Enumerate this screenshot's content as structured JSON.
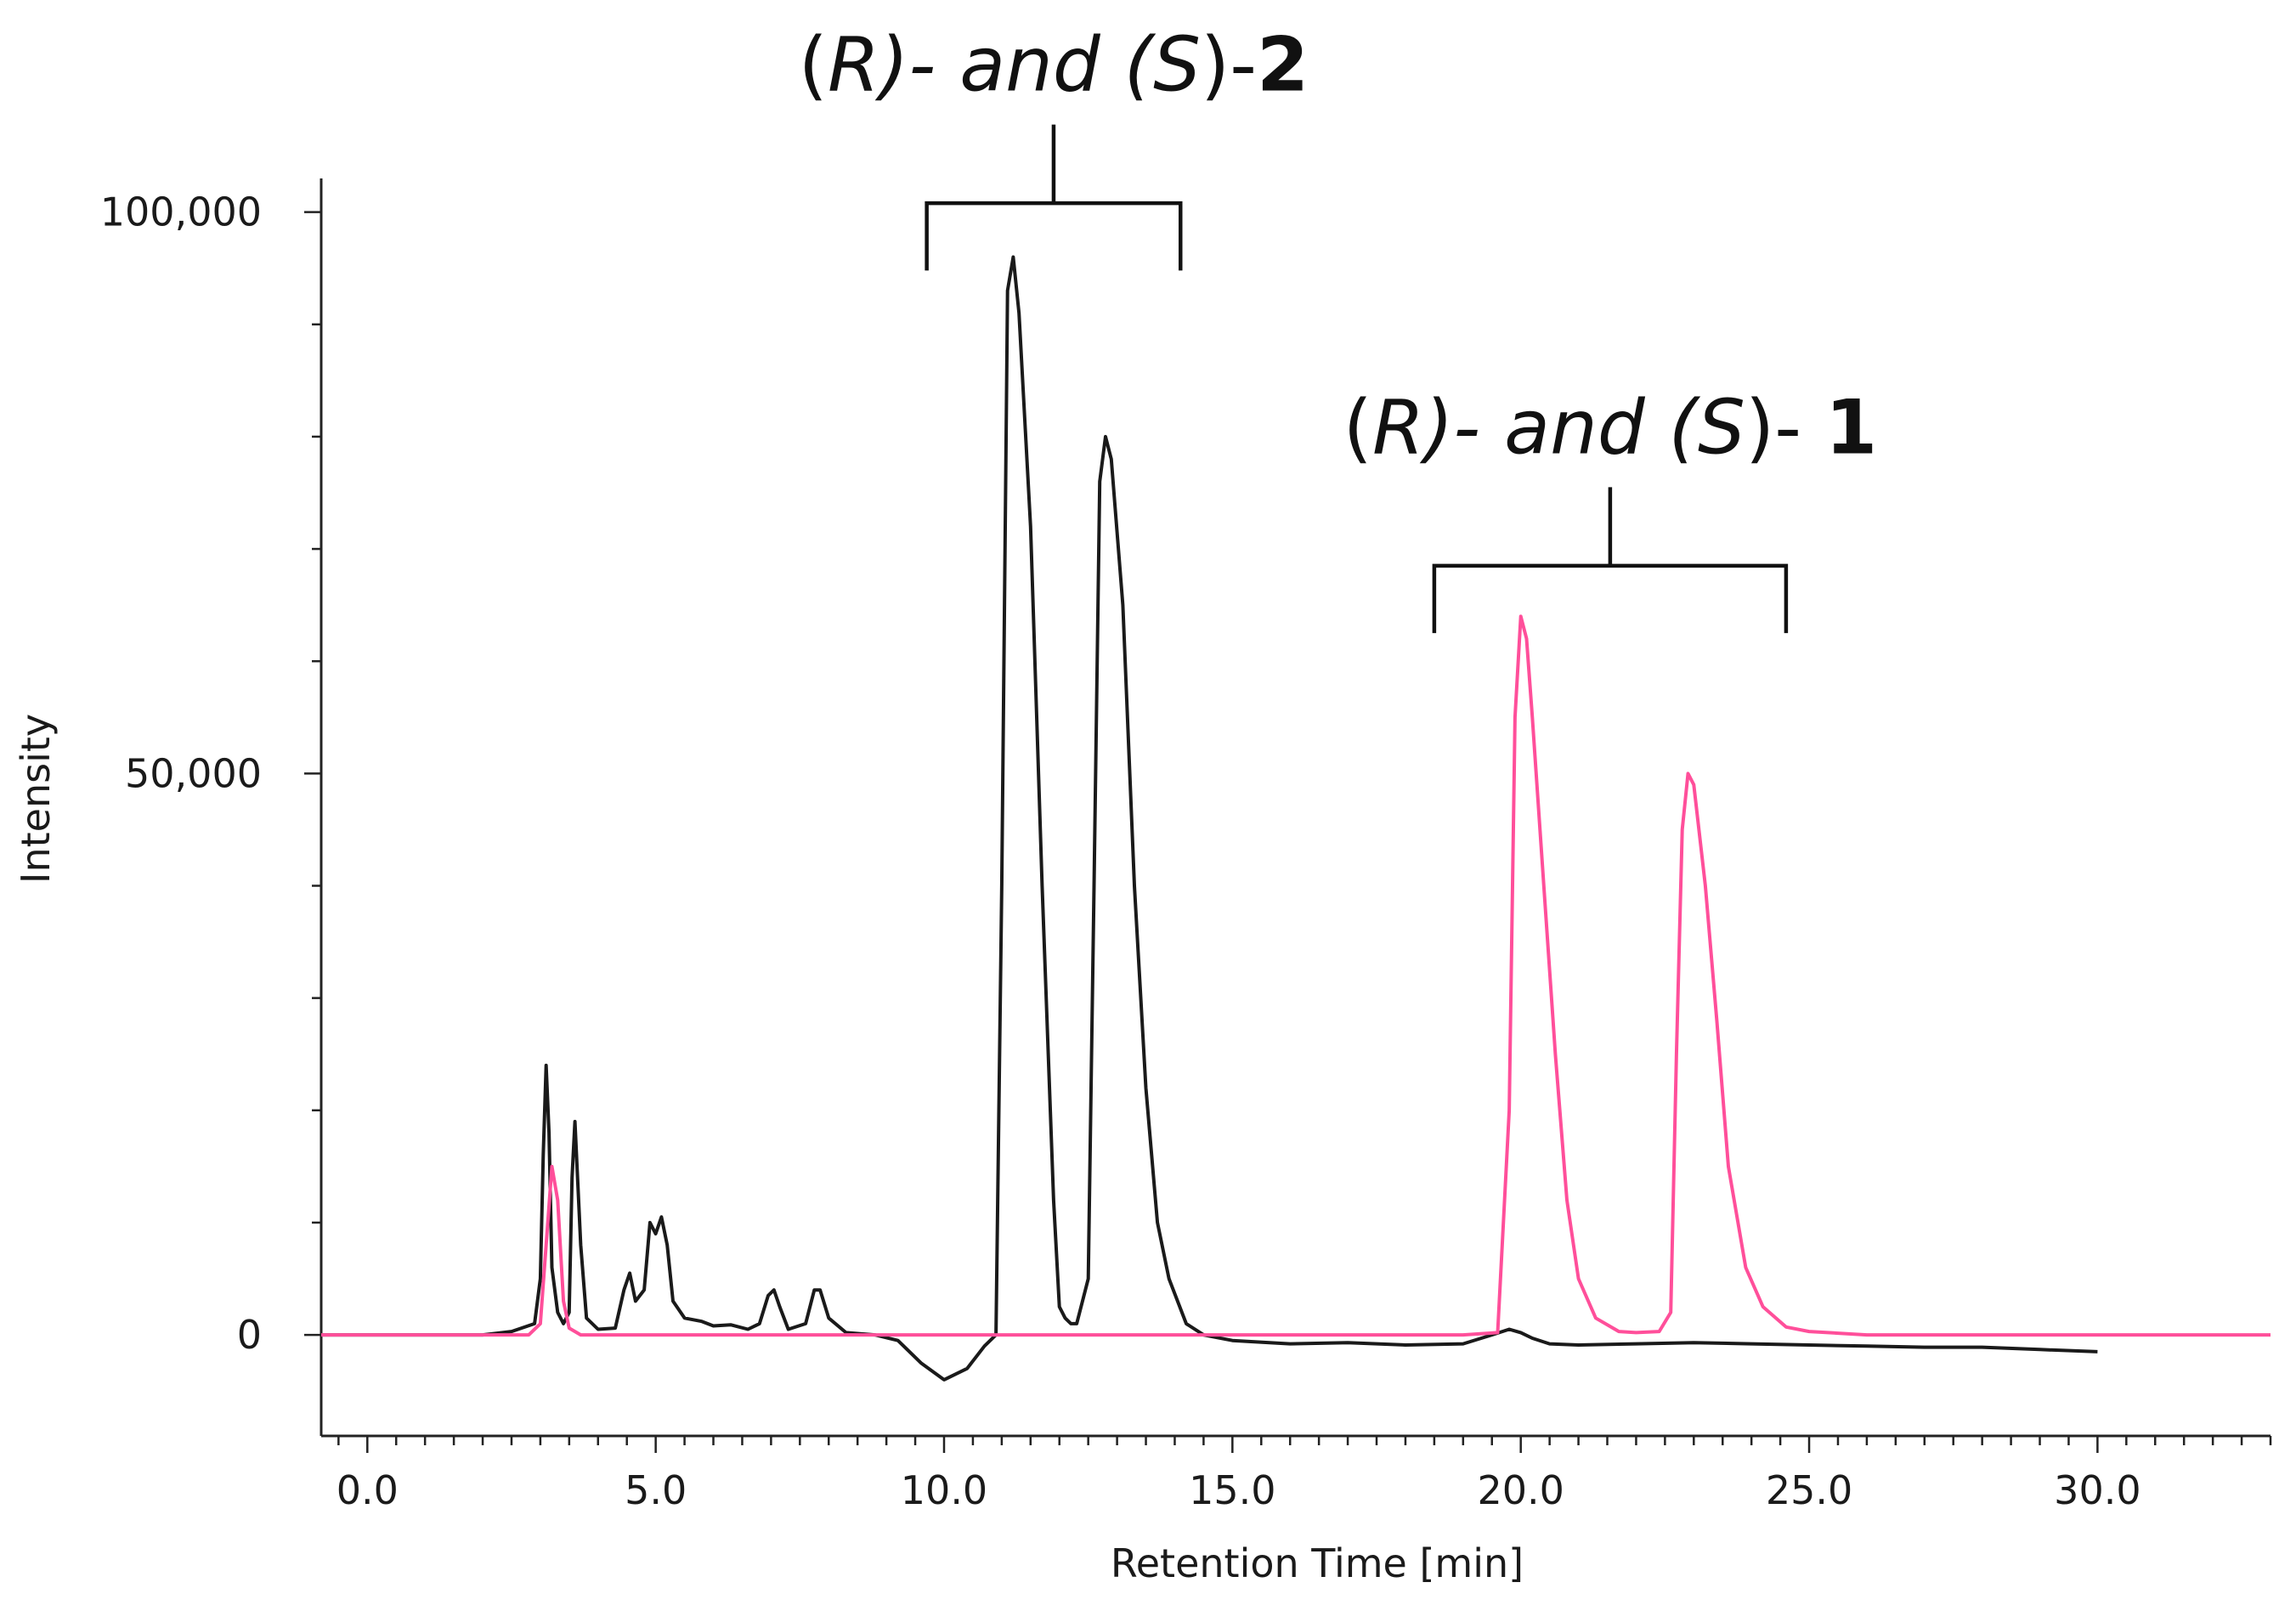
{
  "chart_data": {
    "type": "line",
    "title": "",
    "xlabel": "Retention Time [min]",
    "ylabel": "Intensity",
    "xlim": [
      -0.8,
      33.0
    ],
    "ylim": [
      -9000,
      103000
    ],
    "x_ticks": [
      {
        "value": 0,
        "label": "0.0"
      },
      {
        "value": 5,
        "label": "5.0"
      },
      {
        "value": 10,
        "label": "10.0"
      },
      {
        "value": 15,
        "label": "15.0"
      },
      {
        "value": 20,
        "label": "20.0"
      },
      {
        "value": 25,
        "label": "25.0"
      },
      {
        "value": 30,
        "label": "30.0"
      }
    ],
    "y_ticks": [
      {
        "value": 0,
        "label": "0"
      },
      {
        "value": 50000,
        "label": "50,000"
      },
      {
        "value": 100000,
        "label": "100,000"
      }
    ],
    "grid": false,
    "legend": "none",
    "series": [
      {
        "color": "#1a1a1a",
        "x": [
          -0.8,
          0.0,
          1.0,
          2.0,
          2.5,
          2.9,
          3.0,
          3.05,
          3.1,
          3.15,
          3.2,
          3.3,
          3.4,
          3.5,
          3.55,
          3.6,
          3.7,
          3.8,
          4.0,
          4.3,
          4.45,
          4.55,
          4.65,
          4.8,
          4.9,
          5.0,
          5.1,
          5.2,
          5.3,
          5.5,
          5.8,
          6.0,
          6.3,
          6.6,
          6.8,
          6.95,
          7.05,
          7.15,
          7.3,
          7.6,
          7.75,
          7.85,
          8.0,
          8.3,
          8.8,
          9.2,
          9.6,
          10.0,
          10.4,
          10.7,
          10.9,
          11.0,
          11.1,
          11.2,
          11.3,
          11.5,
          11.7,
          11.9,
          12.0,
          12.1,
          12.2,
          12.3,
          12.5,
          12.6,
          12.7,
          12.8,
          12.9,
          13.1,
          13.3,
          13.5,
          13.7,
          13.9,
          14.2,
          14.5,
          15.0,
          16.0,
          17.0,
          18.0,
          19.0,
          19.5,
          19.8,
          20.0,
          20.2,
          20.5,
          21.0,
          22.0,
          23.0,
          24.0,
          25.0,
          26.0,
          27.0,
          28.0,
          29.0,
          30.0
        ],
        "y": [
          0,
          0,
          0,
          0,
          300,
          1000,
          5000,
          16000,
          24000,
          18000,
          6000,
          2000,
          1000,
          2000,
          14000,
          19000,
          8000,
          1500,
          500,
          600,
          4000,
          5500,
          3000,
          4000,
          10000,
          9000,
          10500,
          8000,
          3000,
          1500,
          1200,
          800,
          900,
          500,
          1000,
          3500,
          4000,
          2500,
          500,
          1000,
          4000,
          4000,
          1500,
          200,
          0,
          -500,
          -2500,
          -4000,
          -3000,
          -1000,
          0,
          40000,
          93000,
          96000,
          91000,
          72000,
          40000,
          12000,
          2500,
          1500,
          1000,
          1000,
          5000,
          40000,
          76000,
          80000,
          78000,
          65000,
          40000,
          22000,
          10000,
          5000,
          1000,
          0,
          -500,
          -800,
          -700,
          -900,
          -800,
          0,
          500,
          200,
          -300,
          -800,
          -900,
          -800,
          -700,
          -800,
          -900,
          -1000,
          -1100,
          -1100,
          -1300,
          -1500
        ]
      },
      {
        "color": "#ff4f9a",
        "x": [
          -0.8,
          0.0,
          1.0,
          2.0,
          2.8,
          3.0,
          3.1,
          3.2,
          3.3,
          3.4,
          3.5,
          3.7,
          4.0,
          5.0,
          6.0,
          7.0,
          8.0,
          9.0,
          10.0,
          11.0,
          12.0,
          13.0,
          14.0,
          15.0,
          16.0,
          17.0,
          18.0,
          19.0,
          19.6,
          19.8,
          19.9,
          20.0,
          20.1,
          20.2,
          20.4,
          20.6,
          20.8,
          21.0,
          21.3,
          21.7,
          22.0,
          22.4,
          22.6,
          22.7,
          22.8,
          22.9,
          23.0,
          23.2,
          23.4,
          23.6,
          23.9,
          24.2,
          24.6,
          25.0,
          26.0,
          27.0,
          28.0,
          29.0,
          30.0,
          31.0,
          32.0,
          33.0
        ],
        "y": [
          0,
          0,
          0,
          0,
          0,
          1000,
          8000,
          15000,
          12000,
          3000,
          600,
          0,
          0,
          0,
          0,
          0,
          0,
          0,
          0,
          0,
          0,
          0,
          0,
          0,
          0,
          0,
          0,
          0,
          200,
          20000,
          55000,
          64000,
          62000,
          55000,
          40000,
          25000,
          12000,
          5000,
          1500,
          300,
          200,
          300,
          2000,
          25000,
          45000,
          50000,
          49000,
          40000,
          28000,
          15000,
          6000,
          2500,
          700,
          300,
          0,
          0,
          0,
          0,
          0,
          0,
          0,
          0
        ]
      }
    ],
    "annotations": [
      {
        "id": "r-s-2",
        "parts": [
          {
            "text": "(",
            "style": "upright"
          },
          {
            "text": "R",
            "style": "italic"
          },
          {
            "text": ")- and (",
            "style": "italic"
          },
          {
            "text": "S",
            "style": "italic"
          },
          {
            "text": ")-",
            "style": "upright"
          },
          {
            "text": "2",
            "style": "bold"
          }
        ],
        "bracket_x": [
          9.7,
          14.1
        ],
        "bracket_y": 100800,
        "leg_bottom_y": 94800,
        "stem_top_y": 107800
      },
      {
        "id": "r-s-1",
        "parts": [
          {
            "text": "(",
            "style": "upright"
          },
          {
            "text": "R",
            "style": "italic"
          },
          {
            "text": ")- and (",
            "style": "italic"
          },
          {
            "text": "S",
            "style": "italic"
          },
          {
            "text": ")- ",
            "style": "upright"
          },
          {
            "text": "1",
            "style": "bold"
          }
        ],
        "bracket_x": [
          18.5,
          24.6
        ],
        "bracket_y": 68500,
        "leg_bottom_y": 62500,
        "stem_top_y": 75500
      }
    ]
  }
}
